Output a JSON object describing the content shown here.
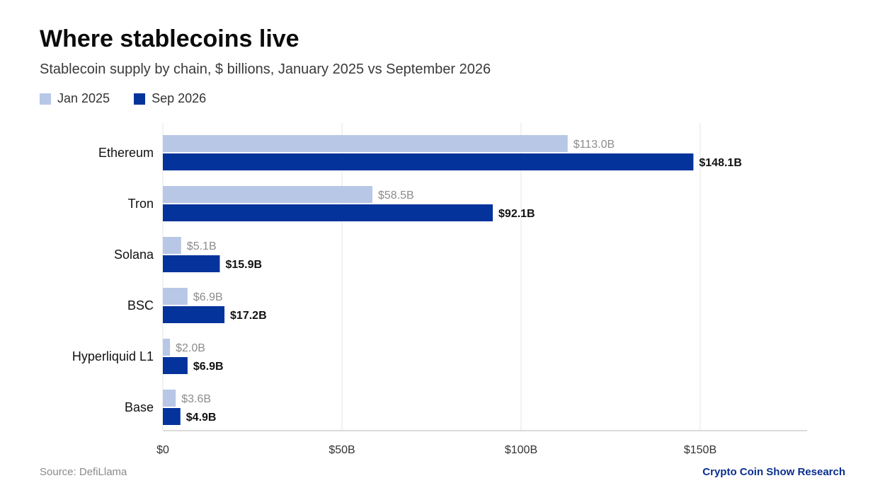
{
  "title": "Where stablecoins live",
  "subtitle": "Stablecoin supply by chain, $ billions, January 2025 vs September 2026",
  "source": "Source: DefiLlama",
  "credit": "Crypto Coin Show Research",
  "colors": {
    "jan": "#b8c7e6",
    "sep": "#03339b",
    "jan_label": "#8c8c8c",
    "sep_label": "#111111",
    "grid": "#e6e6e6",
    "axis": "#cfcfcf"
  },
  "chart_data": {
    "type": "bar",
    "orientation": "horizontal",
    "title": "Where stablecoins live",
    "subtitle": "Stablecoin supply by chain, $ billions, January 2025 vs September 2026",
    "categories": [
      "Ethereum",
      "Tron",
      "Solana",
      "BSC",
      "Hyperliquid L1",
      "Base"
    ],
    "series": [
      {
        "name": "Jan 2025",
        "values": [
          113.0,
          58.5,
          5.1,
          6.9,
          2.0,
          3.6
        ],
        "labels": [
          "$113.0B",
          "$58.5B",
          "$5.1B",
          "$6.9B",
          "$2.0B",
          "$3.6B"
        ]
      },
      {
        "name": "Sep 2026",
        "values": [
          148.1,
          92.1,
          15.9,
          17.2,
          6.9,
          4.9
        ],
        "labels": [
          "$148.1B",
          "$92.1B",
          "$15.9B",
          "$17.2B",
          "$6.9B",
          "$4.9B"
        ]
      }
    ],
    "xlim": [
      0,
      180
    ],
    "xticks": [
      0,
      50,
      100,
      150
    ],
    "xtick_labels": [
      "$0",
      "$50B",
      "$100B",
      "$150B"
    ],
    "grid": true,
    "legend_position": "top-left"
  }
}
